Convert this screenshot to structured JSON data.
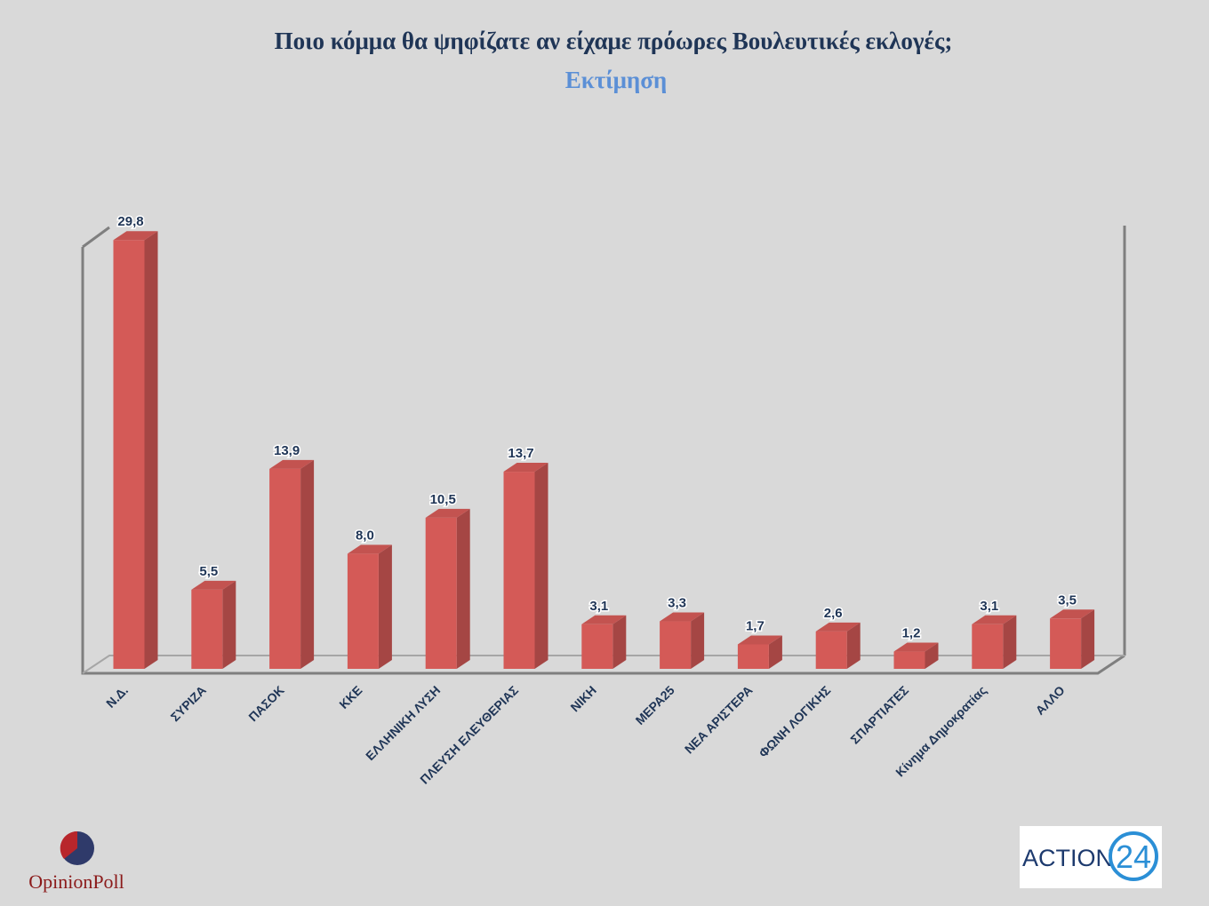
{
  "chart_data": {
    "type": "bar3d",
    "title": "Ποιο κόμμα θα ψηφίζατε αν είχαμε πρόωρες Βουλευτικές εκλογές;",
    "subtitle": "Εκτίμηση",
    "categories": [
      "Ν.Δ.",
      "ΣΥΡΙΖΑ",
      "ΠΑΣΟΚ",
      "ΚΚΕ",
      "ΕΛΛΗΝΙΚΗ ΛΥΣΗ",
      "ΠΛΕΥΣΗ ΕΛΕΥΘΕΡΙΑΣ",
      "ΝΙΚΗ",
      "ΜΕΡΑ25",
      "ΝΕΑ ΑΡΙΣΤΕΡΑ",
      "ΦΩΝΗ ΛΟΓΙΚΗΣ",
      "ΣΠΑΡΤΙΑΤΕΣ",
      "Κίνημα Δημοκρατίας",
      "ΑΛΛΟ"
    ],
    "values": [
      29.8,
      5.5,
      13.9,
      8.0,
      10.5,
      13.7,
      3.1,
      3.3,
      1.7,
      2.6,
      1.2,
      3.1,
      3.5
    ],
    "value_labels": [
      "29,8",
      "5,5",
      "13,9",
      "8,0",
      "10,5",
      "13,7",
      "3,1",
      "3,3",
      "1,7",
      "2,6",
      "1,2",
      "3,1",
      "3,5"
    ],
    "color": "#d45a57"
  },
  "logos": {
    "left": "OpinionPoll",
    "right_text": "ACTION",
    "right_number": "24"
  }
}
